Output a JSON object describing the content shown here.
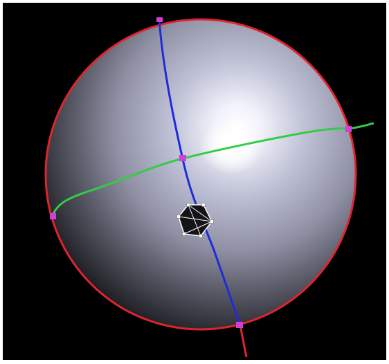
{
  "scene": {
    "background_color": "#000000",
    "frame_color": "#ffffff",
    "sphere": {
      "highlight_color": "#ffffff",
      "mid_color": "#b9bbd2",
      "shadow_color": "#1a1a1f"
    },
    "curves": [
      {
        "id": "outline-circle",
        "color": "#e0242e"
      },
      {
        "id": "meridian-curve",
        "color": "#1f2bd8"
      },
      {
        "id": "equator-curve",
        "color": "#33cc44"
      }
    ],
    "intersection_marker_color": "#d23fd6",
    "polygon_control": {
      "fill": "#141418",
      "stroke": "#ffffff",
      "vertex_count": 6
    }
  }
}
